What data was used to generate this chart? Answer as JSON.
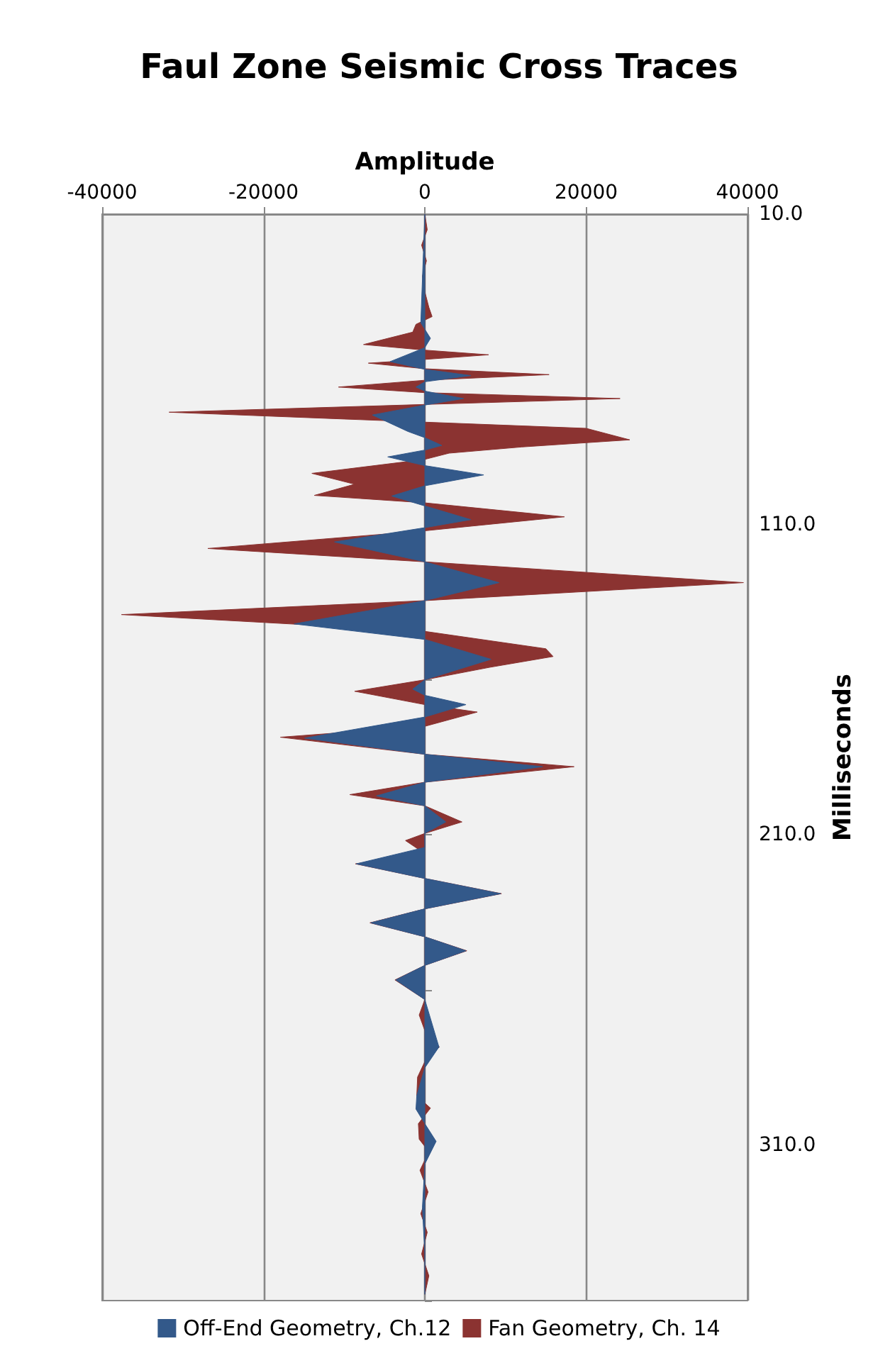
{
  "chart_data": {
    "type": "area",
    "orientation": "horizontal",
    "title": "Faul Zone Seismic Cross Traces",
    "xlabel": "Amplitude",
    "ylabel": "Milliseconds",
    "xlim": [
      -40000,
      40000
    ],
    "xticks": [
      -40000,
      -20000,
      0,
      20000,
      40000
    ],
    "ylim": [
      360,
      10
    ],
    "yticks": [
      {
        "value": 10,
        "label": "10.0"
      },
      {
        "value": 60,
        "label": null
      },
      {
        "value": 110,
        "label": "110.0"
      },
      {
        "value": 160,
        "label": null
      },
      {
        "value": 210,
        "label": "210.0"
      },
      {
        "value": 260,
        "label": null
      },
      {
        "value": 310,
        "label": "310.0"
      },
      {
        "value": 360,
        "label": null
      }
    ],
    "grid": "x",
    "legend": "bottom",
    "series": [
      {
        "name": "Fan Geometry, Ch. 14",
        "color": "#8b3331",
        "x": [
          10,
          15,
          20,
          25,
          30,
          35,
          40,
          43,
          45.5,
          48,
          52,
          53.8,
          55.3,
          56.8,
          58,
          59.8,
          61.7,
          63.5,
          65.7,
          67.5,
          69.4,
          71.3,
          73.8,
          76,
          77,
          79,
          82.7,
          85,
          87,
          89,
          93.5,
          97,
          100.6,
          103,
          107.5,
          112,
          117.7,
          122,
          128.7,
          134.5,
          139,
          144.4,
          150,
          152.5,
          156,
          160,
          163.7,
          168,
          170.4,
          175,
          178.5,
          184,
          188,
          193,
          197,
          200.6,
          205.8,
          209.5,
          211.8,
          216,
          219.3,
          224,
          228.9,
          233.8,
          238.3,
          242.8,
          247.3,
          252,
          256.7,
          263,
          268,
          273,
          278.3,
          283,
          288,
          294,
          298,
          303,
          308,
          312,
          318,
          325,
          332,
          338,
          345,
          352,
          358
        ],
        "values": [
          0,
          300,
          -400,
          200,
          -300,
          0,
          500,
          900,
          -1100,
          -1500,
          -7600,
          0,
          7900,
          0,
          -7000,
          0,
          15400,
          0,
          -10700,
          0,
          24200,
          0,
          -31700,
          -10000,
          0,
          20000,
          25400,
          12000,
          3000,
          0,
          -14000,
          -8700,
          -13700,
          0,
          17300,
          0,
          -26900,
          0,
          39500,
          0,
          -37600,
          0,
          15000,
          15900,
          8000,
          0,
          -8700,
          0,
          6500,
          0,
          -17900,
          0,
          18500,
          0,
          -9300,
          0,
          4600,
          0,
          -2400,
          0,
          -8600,
          0,
          9500,
          0,
          -6800,
          0,
          5200,
          0,
          -3700,
          0,
          -700,
          0,
          1800,
          0,
          -900,
          -1000,
          700,
          -800,
          -700,
          500,
          -600,
          400,
          -500,
          300,
          -400,
          500,
          0
        ]
      },
      {
        "name": "Off-End Geometry, Ch.12",
        "color": "#33598a",
        "x": [
          10,
          45,
          50,
          53,
          57.5,
          60,
          62,
          64,
          65.7,
          67,
          69.4,
          71.5,
          74.7,
          80,
          82,
          84.5,
          86,
          88.2,
          91,
          94,
          97.5,
          100.8,
          104,
          108.4,
          111,
          115.6,
          122,
          128.7,
          134.5,
          142,
          147,
          153.4,
          160,
          163,
          165,
          168,
          172,
          178.8,
          184,
          188,
          193,
          197.4,
          200.6,
          205.8,
          209.5,
          214,
          219.3,
          224,
          228.9,
          233.8,
          238.3,
          242.8,
          247.3,
          252,
          256.7,
          263,
          278.3,
          285,
          294,
          298.3,
          303,
          308.7,
          316,
          330,
          345,
          358
        ],
        "values": [
          0,
          -500,
          700,
          0,
          -4300,
          0,
          5700,
          0,
          -1100,
          0,
          4800,
          0,
          -6500,
          -2100,
          0,
          2100,
          0,
          -4600,
          0,
          7300,
          0,
          -4100,
          0,
          5700,
          0,
          -11200,
          0,
          9200,
          0,
          -16200,
          0,
          8200,
          0,
          -1500,
          0,
          5100,
          0,
          -14900,
          0,
          14600,
          0,
          -6000,
          0,
          2600,
          0,
          0,
          -8500,
          0,
          9400,
          0,
          -6700,
          0,
          5100,
          0,
          -3600,
          0,
          1750,
          0,
          -1000,
          -1100,
          0,
          1400,
          0,
          -300,
          0,
          0
        ]
      }
    ]
  }
}
